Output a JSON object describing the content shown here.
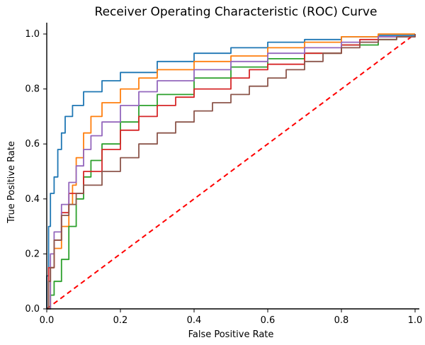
{
  "chart_data": {
    "type": "line",
    "title": "Receiver Operating Characteristic (ROC) Curve",
    "xlabel": "False Positive Rate",
    "ylabel": "True Positive Rate",
    "xlim": [
      0,
      1
    ],
    "ylim": [
      0,
      1.03
    ],
    "x_ticks": [
      "0.0",
      "0.2",
      "0.4",
      "0.6",
      "0.8",
      "1.0"
    ],
    "y_ticks": [
      "0.0",
      "0.2",
      "0.4",
      "0.6",
      "0.8",
      "1.0"
    ],
    "grid": false,
    "legend": "none",
    "series": [
      {
        "color": "#1f77b4",
        "x": [
          0,
          0,
          0.005,
          0.01,
          0.02,
          0.03,
          0.04,
          0.05,
          0.07,
          0.1,
          0.15,
          0.2,
          0.3,
          0.4,
          0.5,
          0.6,
          0.7,
          0.8,
          0.9,
          1.0
        ],
        "y": [
          0,
          0.12,
          0.3,
          0.42,
          0.48,
          0.58,
          0.64,
          0.7,
          0.74,
          0.79,
          0.83,
          0.86,
          0.9,
          0.93,
          0.95,
          0.97,
          0.98,
          0.99,
          0.995,
          1.0
        ]
      },
      {
        "color": "#ff7f0e",
        "x": [
          0,
          0.01,
          0.02,
          0.04,
          0.06,
          0.07,
          0.08,
          0.1,
          0.12,
          0.15,
          0.2,
          0.25,
          0.3,
          0.4,
          0.5,
          0.6,
          0.7,
          0.8,
          0.9,
          1.0
        ],
        "y": [
          0,
          0.15,
          0.22,
          0.3,
          0.38,
          0.45,
          0.55,
          0.64,
          0.7,
          0.75,
          0.8,
          0.84,
          0.87,
          0.9,
          0.92,
          0.95,
          0.97,
          0.99,
          1.0,
          1.0
        ]
      },
      {
        "color": "#2ca02c",
        "x": [
          0,
          0.01,
          0.02,
          0.04,
          0.06,
          0.08,
          0.1,
          0.12,
          0.15,
          0.2,
          0.25,
          0.3,
          0.4,
          0.5,
          0.6,
          0.7,
          0.8,
          0.9,
          0.95,
          1.0
        ],
        "y": [
          0,
          0.05,
          0.1,
          0.18,
          0.3,
          0.4,
          0.48,
          0.54,
          0.6,
          0.68,
          0.74,
          0.78,
          0.84,
          0.88,
          0.91,
          0.93,
          0.96,
          0.98,
          0.99,
          1.0
        ]
      },
      {
        "color": "#d62728",
        "x": [
          0,
          0.005,
          0.02,
          0.04,
          0.06,
          0.1,
          0.15,
          0.2,
          0.25,
          0.3,
          0.35,
          0.4,
          0.5,
          0.55,
          0.6,
          0.7,
          0.8,
          0.85,
          0.9,
          1.0
        ],
        "y": [
          0,
          0.15,
          0.25,
          0.35,
          0.42,
          0.5,
          0.58,
          0.65,
          0.7,
          0.74,
          0.77,
          0.8,
          0.84,
          0.87,
          0.89,
          0.93,
          0.96,
          0.98,
          0.99,
          1.0
        ]
      },
      {
        "color": "#9467bd",
        "x": [
          0,
          0.01,
          0.02,
          0.04,
          0.06,
          0.08,
          0.1,
          0.12,
          0.15,
          0.2,
          0.25,
          0.3,
          0.4,
          0.5,
          0.6,
          0.7,
          0.8,
          0.9,
          1.0
        ],
        "y": [
          0,
          0.2,
          0.28,
          0.38,
          0.46,
          0.52,
          0.58,
          0.63,
          0.68,
          0.74,
          0.79,
          0.83,
          0.87,
          0.9,
          0.93,
          0.95,
          0.97,
          0.99,
          1.0
        ]
      },
      {
        "color": "#8c564b",
        "x": [
          0,
          0.005,
          0.01,
          0.02,
          0.04,
          0.06,
          0.08,
          0.1,
          0.15,
          0.2,
          0.25,
          0.3,
          0.35,
          0.4,
          0.45,
          0.5,
          0.55,
          0.6,
          0.65,
          0.7,
          0.75,
          0.8,
          0.85,
          0.9,
          0.95,
          1.0
        ],
        "y": [
          0,
          0.1,
          0.15,
          0.25,
          0.34,
          0.38,
          0.42,
          0.45,
          0.5,
          0.55,
          0.6,
          0.64,
          0.68,
          0.72,
          0.75,
          0.78,
          0.81,
          0.84,
          0.87,
          0.9,
          0.93,
          0.95,
          0.97,
          0.98,
          0.99,
          1.0
        ]
      }
    ],
    "reference_line": {
      "color": "#ff0000",
      "style": "dashed",
      "x": [
        0,
        1
      ],
      "y": [
        0,
        1
      ]
    }
  }
}
